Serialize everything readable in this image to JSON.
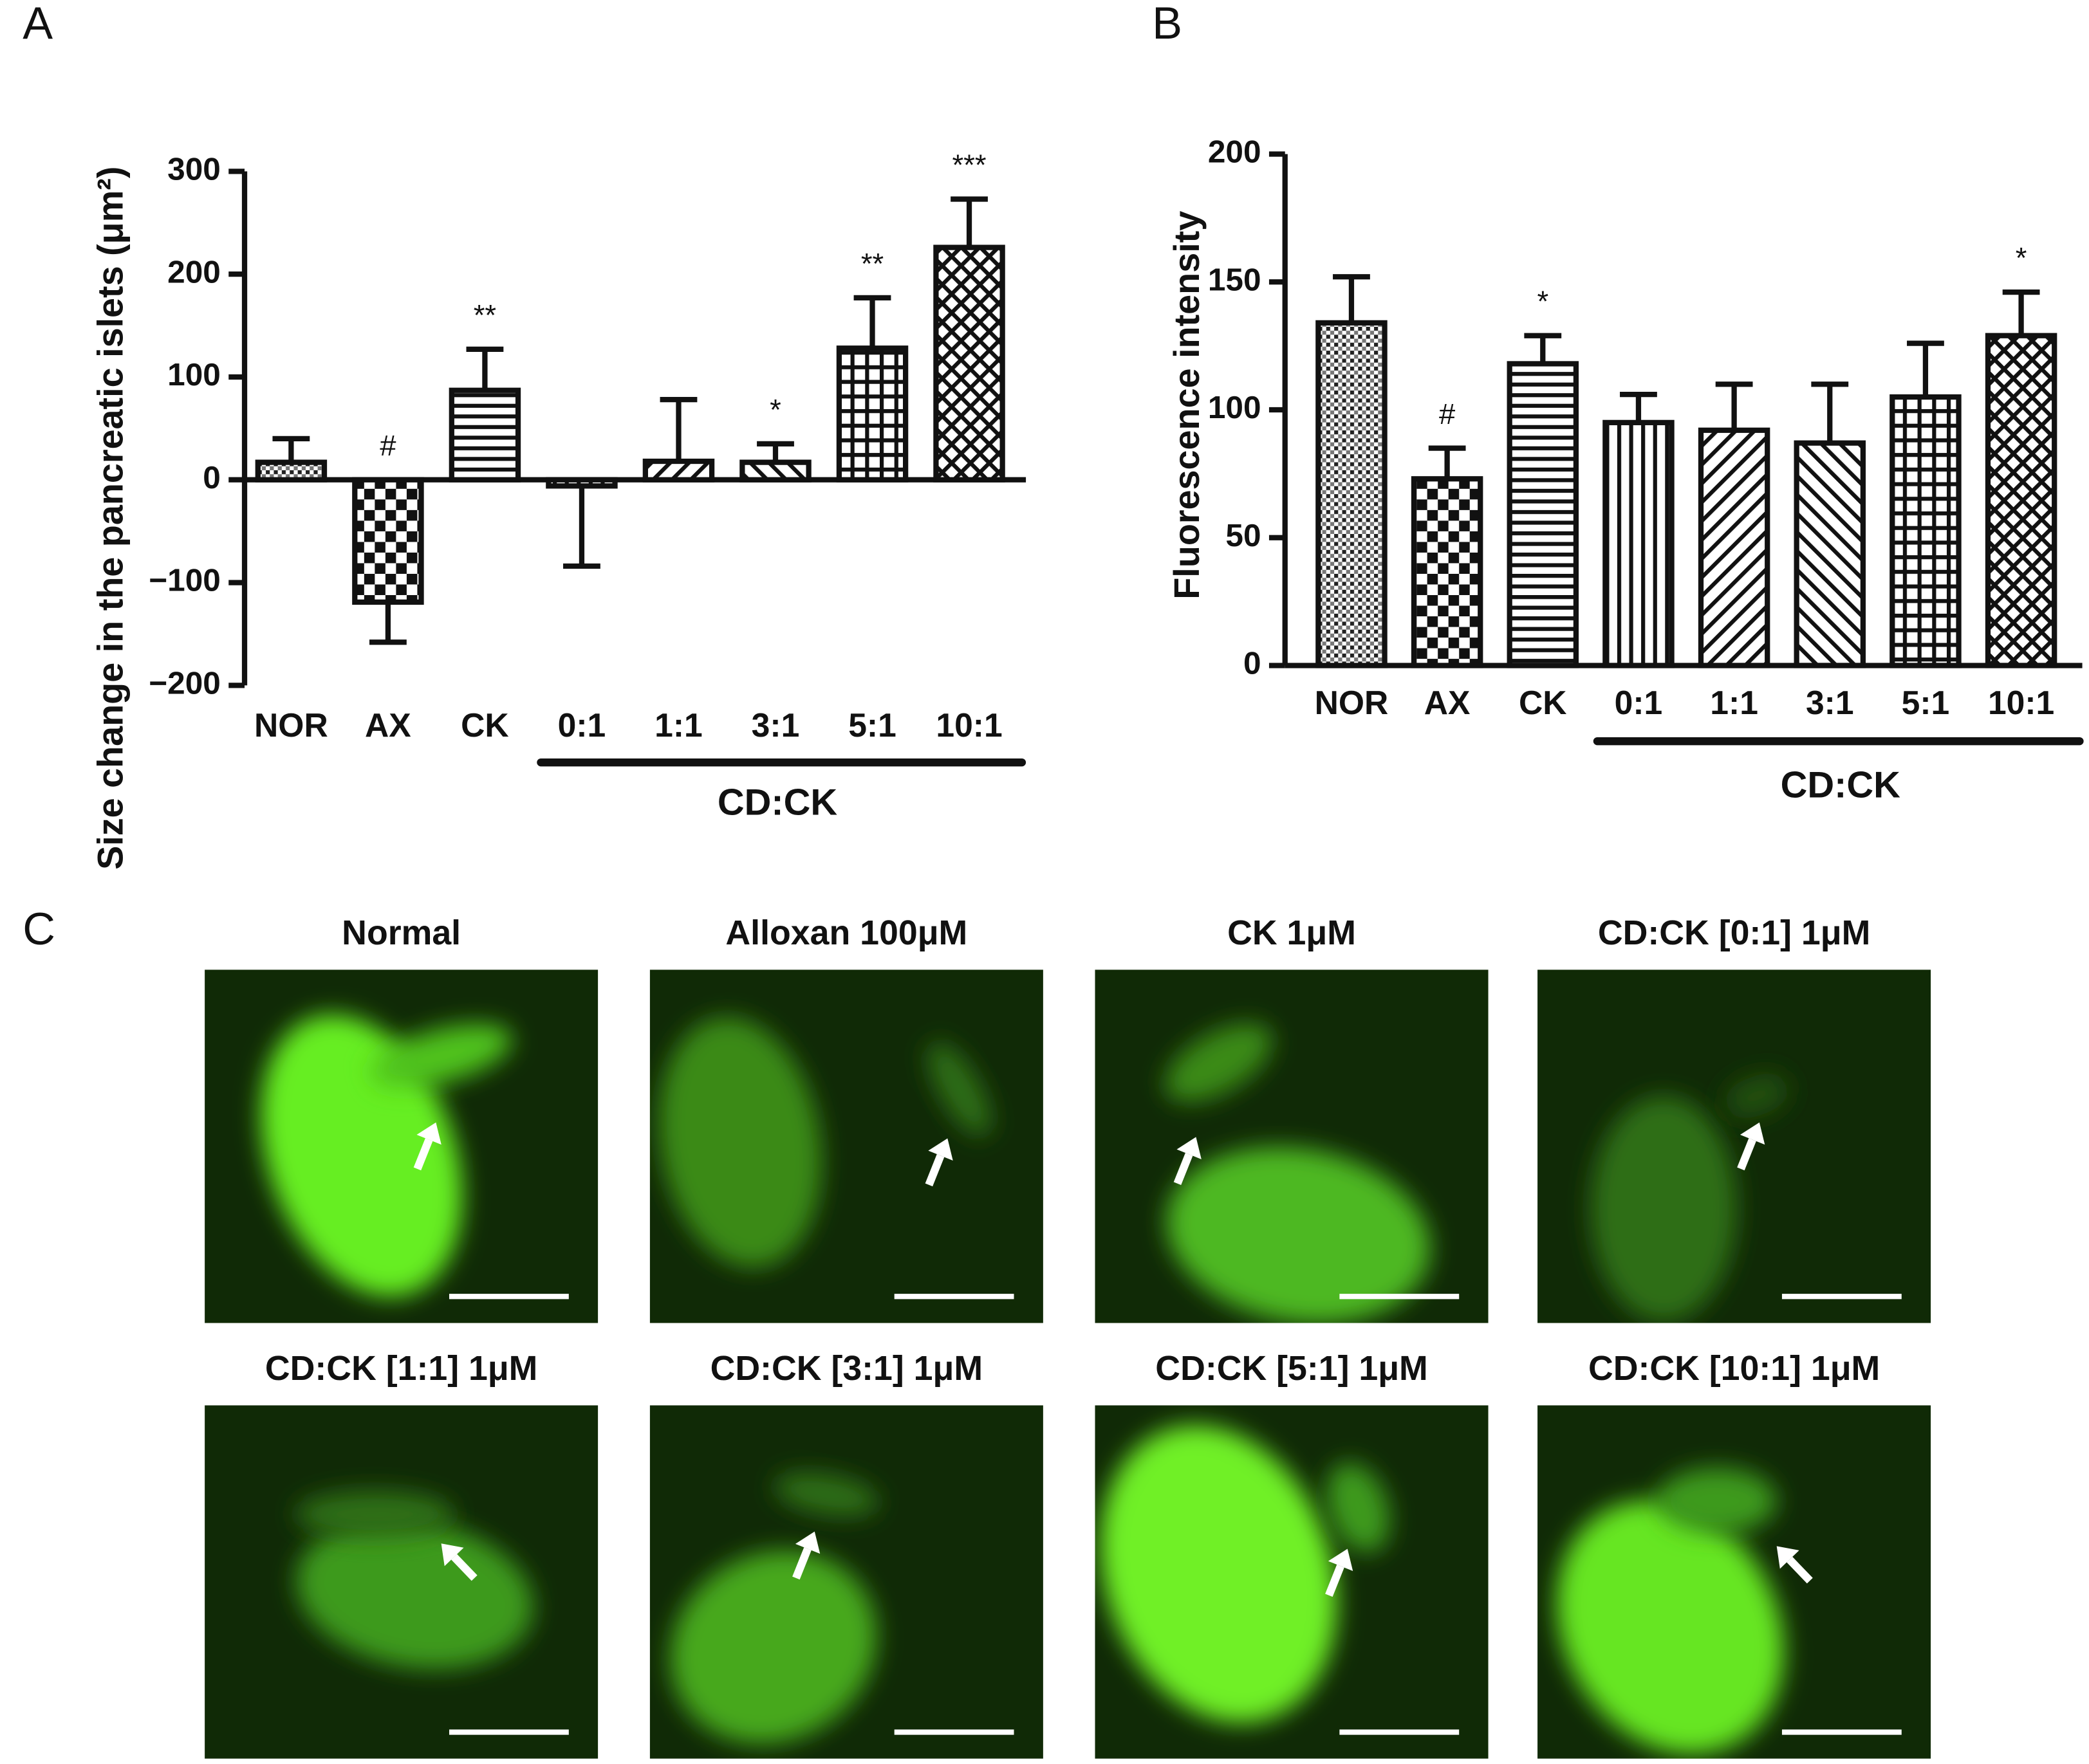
{
  "chart_data": [
    {
      "type": "bar",
      "panel_label": "A",
      "y_label": "Size change in the pancreatic islets (μm²)",
      "categories": [
        "NOR",
        "AX",
        "CK",
        "0:1",
        "1:1",
        "3:1",
        "5:1",
        "10:1"
      ],
      "group_label": "CD:CK",
      "values": [
        17,
        -119,
        87,
        -6,
        18,
        17,
        128,
        226
      ],
      "errors": [
        23,
        39,
        40,
        78,
        60,
        18,
        49,
        47
      ],
      "significance": [
        null,
        "#",
        "**",
        null,
        null,
        "*",
        "**",
        "***"
      ],
      "ylim": [
        -200,
        300
      ],
      "yticks": [
        {
          "value": -200,
          "label": "−200"
        },
        {
          "value": -100,
          "label": "−100"
        },
        0,
        100,
        200,
        300
      ]
    },
    {
      "type": "bar",
      "panel_label": "B",
      "y_label": "Fluorescence intensity",
      "categories": [
        "NOR",
        "AX",
        "CK",
        "0:1",
        "1:1",
        "3:1",
        "5:1",
        "10:1"
      ],
      "group_label": "CD:CK",
      "values": [
        134,
        73,
        118,
        95,
        92,
        87,
        105,
        129
      ],
      "errors": [
        18,
        12,
        11,
        11,
        18,
        23,
        21,
        17
      ],
      "significance": [
        null,
        "#",
        "*",
        null,
        null,
        null,
        null,
        "*"
      ],
      "ylim": [
        0,
        200
      ],
      "yticks": [
        0,
        50,
        100,
        150,
        200
      ]
    }
  ],
  "image_panels": {
    "panel_label": "C",
    "titles": [
      "Normal",
      "Alloxan 100μM",
      "CK 1μM",
      "CD:CK [0:1] 1μM",
      "CD:CK [1:1] 1μM",
      "CD:CK [3:1] 1μM",
      "CD:CK [5:1] 1μM",
      "CD:CK [10:1] 1μM"
    ]
  }
}
